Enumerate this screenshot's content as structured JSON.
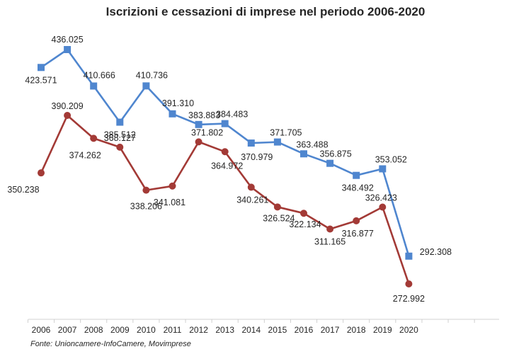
{
  "chart_data": {
    "type": "line",
    "title": "Iscrizioni e cessazioni di imprese nel periodo 2006-2020",
    "source": "Fonte: Unioncamere-InfoCamere, Movimprese",
    "x": [
      "2006",
      "2007",
      "2008",
      "2009",
      "2010",
      "2011",
      "2012",
      "2013",
      "2014",
      "2015",
      "2016",
      "2017",
      "2018",
      "2019",
      "2020"
    ],
    "series": [
      {
        "key": "iscrizioni",
        "color": "#4f86cf",
        "marker": "square",
        "values": [
          423571,
          436025,
          410666,
          385512,
          410736,
          391310,
          383883,
          384483,
          370979,
          371705,
          363488,
          356875,
          348492,
          353052,
          292308
        ],
        "labels": [
          "423.571",
          "436.025",
          "410.666",
          "385.512",
          "410.736",
          "391.310",
          "383.883",
          "384.483",
          "370.979",
          "371.705",
          "363.488",
          "356.875",
          "348.492",
          "353.052",
          "292.308"
        ]
      },
      {
        "key": "cessazioni",
        "color": "#a33a36",
        "marker": "circle",
        "values": [
          350238,
          390209,
          374262,
          368127,
          338206,
          341081,
          371802,
          364972,
          340261,
          326524,
          322134,
          311165,
          316877,
          326423,
          272992
        ],
        "labels": [
          "350.238",
          "390.209",
          "374.262",
          "368.127",
          "338.206",
          "341.081",
          "371.802",
          "364.972",
          "340.261",
          "326.524",
          "322.134",
          "311.165",
          "316.877",
          "326.423",
          "272.992"
        ]
      }
    ],
    "grid": false,
    "legend": "none"
  }
}
